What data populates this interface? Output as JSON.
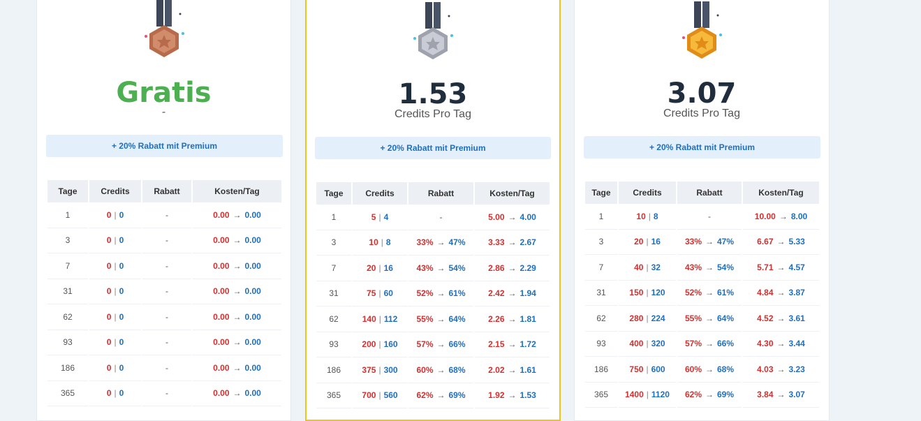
{
  "arrow": "→",
  "divider": "|",
  "headers": [
    "Tage",
    "Credits",
    "Rabatt",
    "Kosten/Tag"
  ],
  "promo_label": "+ 20% Rabatt mit Premium",
  "plans": [
    {
      "medal": "bronze-medal-icon",
      "medal_color": "#c47a5a",
      "price": "Gratis",
      "subtitle": "-",
      "rows": [
        {
          "days": "1",
          "credits": "0",
          "credits_premium": "0",
          "discount": "-",
          "cost": "0.00",
          "cost_premium": "0.00"
        },
        {
          "days": "3",
          "credits": "0",
          "credits_premium": "0",
          "discount": "-",
          "cost": "0.00",
          "cost_premium": "0.00"
        },
        {
          "days": "7",
          "credits": "0",
          "credits_premium": "0",
          "discount": "-",
          "cost": "0.00",
          "cost_premium": "0.00"
        },
        {
          "days": "31",
          "credits": "0",
          "credits_premium": "0",
          "discount": "-",
          "cost": "0.00",
          "cost_premium": "0.00"
        },
        {
          "days": "62",
          "credits": "0",
          "credits_premium": "0",
          "discount": "-",
          "cost": "0.00",
          "cost_premium": "0.00"
        },
        {
          "days": "93",
          "credits": "0",
          "credits_premium": "0",
          "discount": "-",
          "cost": "0.00",
          "cost_premium": "0.00"
        },
        {
          "days": "186",
          "credits": "0",
          "credits_premium": "0",
          "discount": "-",
          "cost": "0.00",
          "cost_premium": "0.00"
        },
        {
          "days": "365",
          "credits": "0",
          "credits_premium": "0",
          "discount": "-",
          "cost": "0.00",
          "cost_premium": "0.00"
        }
      ]
    },
    {
      "medal": "silver-medal-icon",
      "medal_color": "#b9bcc6",
      "price": "1.53",
      "subtitle": "Credits Pro Tag",
      "rows": [
        {
          "days": "1",
          "credits": "5",
          "credits_premium": "4",
          "discount": "-",
          "cost": "5.00",
          "cost_premium": "4.00"
        },
        {
          "days": "3",
          "credits": "10",
          "credits_premium": "8",
          "discount": "33%",
          "discount_premium": "47%",
          "cost": "3.33",
          "cost_premium": "2.67"
        },
        {
          "days": "7",
          "credits": "20",
          "credits_premium": "16",
          "discount": "43%",
          "discount_premium": "54%",
          "cost": "2.86",
          "cost_premium": "2.29"
        },
        {
          "days": "31",
          "credits": "75",
          "credits_premium": "60",
          "discount": "52%",
          "discount_premium": "61%",
          "cost": "2.42",
          "cost_premium": "1.94"
        },
        {
          "days": "62",
          "credits": "140",
          "credits_premium": "112",
          "discount": "55%",
          "discount_premium": "64%",
          "cost": "2.26",
          "cost_premium": "1.81"
        },
        {
          "days": "93",
          "credits": "200",
          "credits_premium": "160",
          "discount": "57%",
          "discount_premium": "66%",
          "cost": "2.15",
          "cost_premium": "1.72"
        },
        {
          "days": "186",
          "credits": "375",
          "credits_premium": "300",
          "discount": "60%",
          "discount_premium": "68%",
          "cost": "2.02",
          "cost_premium": "1.61"
        },
        {
          "days": "365",
          "credits": "700",
          "credits_premium": "560",
          "discount": "62%",
          "discount_premium": "69%",
          "cost": "1.92",
          "cost_premium": "1.53"
        }
      ]
    },
    {
      "medal": "gold-medal-icon",
      "medal_color": "#f0a92a",
      "price": "3.07",
      "subtitle": "Credits Pro Tag",
      "rows": [
        {
          "days": "1",
          "credits": "10",
          "credits_premium": "8",
          "discount": "-",
          "cost": "10.00",
          "cost_premium": "8.00"
        },
        {
          "days": "3",
          "credits": "20",
          "credits_premium": "16",
          "discount": "33%",
          "discount_premium": "47%",
          "cost": "6.67",
          "cost_premium": "5.33"
        },
        {
          "days": "7",
          "credits": "40",
          "credits_premium": "32",
          "discount": "43%",
          "discount_premium": "54%",
          "cost": "5.71",
          "cost_premium": "4.57"
        },
        {
          "days": "31",
          "credits": "150",
          "credits_premium": "120",
          "discount": "52%",
          "discount_premium": "61%",
          "cost": "4.84",
          "cost_premium": "3.87"
        },
        {
          "days": "62",
          "credits": "280",
          "credits_premium": "224",
          "discount": "55%",
          "discount_premium": "64%",
          "cost": "4.52",
          "cost_premium": "3.61"
        },
        {
          "days": "93",
          "credits": "400",
          "credits_premium": "320",
          "discount": "57%",
          "discount_premium": "66%",
          "cost": "4.30",
          "cost_premium": "3.44"
        },
        {
          "days": "186",
          "credits": "750",
          "credits_premium": "600",
          "discount": "60%",
          "discount_premium": "68%",
          "cost": "4.03",
          "cost_premium": "3.23"
        },
        {
          "days": "365",
          "credits": "1400",
          "credits_premium": "1120",
          "discount": "62%",
          "discount_premium": "69%",
          "cost": "3.84",
          "cost_premium": "3.07"
        }
      ]
    }
  ]
}
